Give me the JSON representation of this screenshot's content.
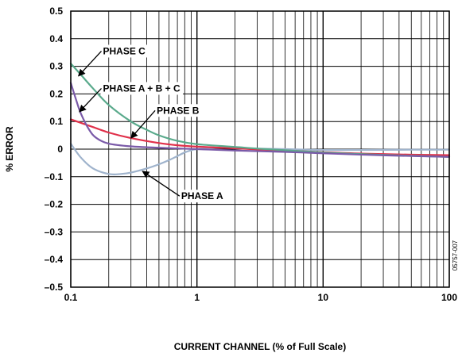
{
  "chart_data": {
    "type": "line",
    "xscale": "log",
    "xlim": [
      0.1,
      100
    ],
    "ylim": [
      -0.5,
      0.5
    ],
    "grid": true,
    "xlabel": "CURRENT CHANNEL (% of Full Scale)",
    "ylabel": "% ERROR",
    "xticks": [
      0.1,
      1,
      10,
      100
    ],
    "xtick_labels": [
      "0.1",
      "1",
      "10",
      "100"
    ],
    "yticks": [
      -0.5,
      -0.4,
      -0.3,
      -0.2,
      -0.1,
      0,
      0.1,
      0.2,
      0.3,
      0.4,
      0.5
    ],
    "ytick_labels": [
      "–0.5",
      "–0.4",
      "–0.3",
      "–0.2",
      "–0.1",
      "0",
      "0.1",
      "0.2",
      "0.3",
      "0.4",
      "0.5"
    ],
    "figure_id": "05757-007",
    "series": [
      {
        "name": "PHASE A",
        "color": "#9fb3cc",
        "x": [
          0.1,
          0.12,
          0.15,
          0.2,
          0.25,
          0.3,
          0.4,
          0.5,
          0.6,
          0.7,
          0.8,
          0.9,
          1,
          1.5,
          2,
          3,
          5,
          10,
          20,
          50,
          100
        ],
        "y": [
          0.02,
          -0.03,
          -0.07,
          -0.09,
          -0.09,
          -0.085,
          -0.07,
          -0.055,
          -0.04,
          -0.025,
          -0.012,
          -0.004,
          0.0,
          0.005,
          0.004,
          0.002,
          0.0,
          -0.003,
          -0.003,
          -0.002,
          -0.002
        ]
      },
      {
        "name": "PHASE B",
        "color": "#e0304a",
        "x": [
          0.1,
          0.15,
          0.2,
          0.3,
          0.5,
          0.7,
          1,
          2,
          3,
          5,
          10,
          20,
          50,
          100
        ],
        "y": [
          0.108,
          0.08,
          0.06,
          0.04,
          0.022,
          0.014,
          0.009,
          0.003,
          -0.001,
          -0.005,
          -0.011,
          -0.016,
          -0.02,
          -0.022
        ]
      },
      {
        "name": "PHASE C",
        "color": "#5aaa8c",
        "x": [
          0.1,
          0.12,
          0.15,
          0.2,
          0.3,
          0.4,
          0.5,
          0.7,
          1,
          2,
          3,
          5,
          10,
          20,
          50,
          100
        ],
        "y": [
          0.31,
          0.27,
          0.22,
          0.16,
          0.1,
          0.07,
          0.05,
          0.03,
          0.018,
          0.008,
          0.002,
          -0.004,
          -0.012,
          -0.018,
          -0.024,
          -0.028
        ]
      },
      {
        "name": "PHASE A + B + C",
        "color": "#7a5aa8",
        "x": [
          0.1,
          0.11,
          0.12,
          0.14,
          0.16,
          0.2,
          0.3,
          0.5,
          1,
          2,
          5,
          10,
          20,
          50,
          100
        ],
        "y": [
          0.24,
          0.18,
          0.13,
          0.07,
          0.04,
          0.02,
          0.01,
          0.005,
          0.0,
          -0.005,
          -0.01,
          -0.015,
          -0.02,
          -0.025,
          -0.028
        ]
      }
    ],
    "annotations": [
      {
        "text": "PHASE C",
        "series": "PHASE C",
        "label_x": 0.18,
        "label_y": 0.355,
        "point_x": 0.115,
        "point_y": 0.265
      },
      {
        "text": "PHASE A + B + C",
        "series": "PHASE A + B + C",
        "label_x": 0.18,
        "label_y": 0.22,
        "point_x": 0.117,
        "point_y": 0.135
      },
      {
        "text": "PHASE B",
        "series": "PHASE B",
        "label_x": 0.48,
        "label_y": 0.14,
        "point_x": 0.3,
        "point_y": 0.04
      },
      {
        "text": "PHASE A",
        "series": "PHASE A",
        "label_x": 0.75,
        "label_y": -0.17,
        "point_x": 0.37,
        "point_y": -0.08
      }
    ]
  }
}
